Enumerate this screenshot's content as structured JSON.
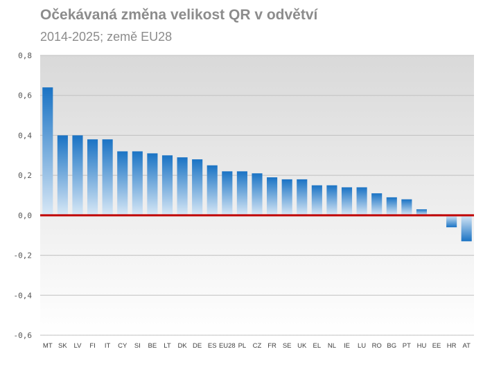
{
  "title": "Očekávaná změna velikost QR v odvětví",
  "subtitle": "2014-2025; země EU28",
  "chart_data": {
    "type": "bar",
    "title": "Očekávaná změna velikost QR v odvětví",
    "subtitle": "2014-2025; země EU28",
    "categories": [
      "MT",
      "SK",
      "LV",
      "FI",
      "IT",
      "CY",
      "SI",
      "BE",
      "LT",
      "DK",
      "DE",
      "ES",
      "EU28",
      "PL",
      "CZ",
      "FR",
      "SE",
      "UK",
      "EL",
      "NL",
      "IE",
      "LU",
      "RO",
      "BG",
      "PT",
      "HU",
      "EE",
      "HR",
      "AT"
    ],
    "values": [
      0.64,
      0.4,
      0.4,
      0.38,
      0.38,
      0.32,
      0.32,
      0.31,
      0.3,
      0.29,
      0.28,
      0.25,
      0.22,
      0.22,
      0.21,
      0.19,
      0.18,
      0.18,
      0.15,
      0.15,
      0.14,
      0.14,
      0.11,
      0.09,
      0.08,
      0.03,
      0.005,
      -0.06,
      -0.13
    ],
    "ylim": [
      -0.6,
      0.8
    ],
    "yticks": [
      0.8,
      0.6,
      0.4,
      0.2,
      0.0,
      -0.2,
      -0.4,
      -0.6
    ],
    "ytick_labels": [
      "0,8",
      "0,6",
      "0,4",
      "0,2",
      "0,0",
      "-0,2",
      "-0,4",
      "-0,6"
    ],
    "grid": true,
    "legend": "none",
    "colors": {
      "bar_top": "#1a73c4",
      "bar_bottom": "#d8e8f6",
      "zero_line": "#c00000",
      "grid": "#c0c0c0",
      "bg_top": "#d9d9d9",
      "bg_bottom": "#ffffff"
    }
  }
}
